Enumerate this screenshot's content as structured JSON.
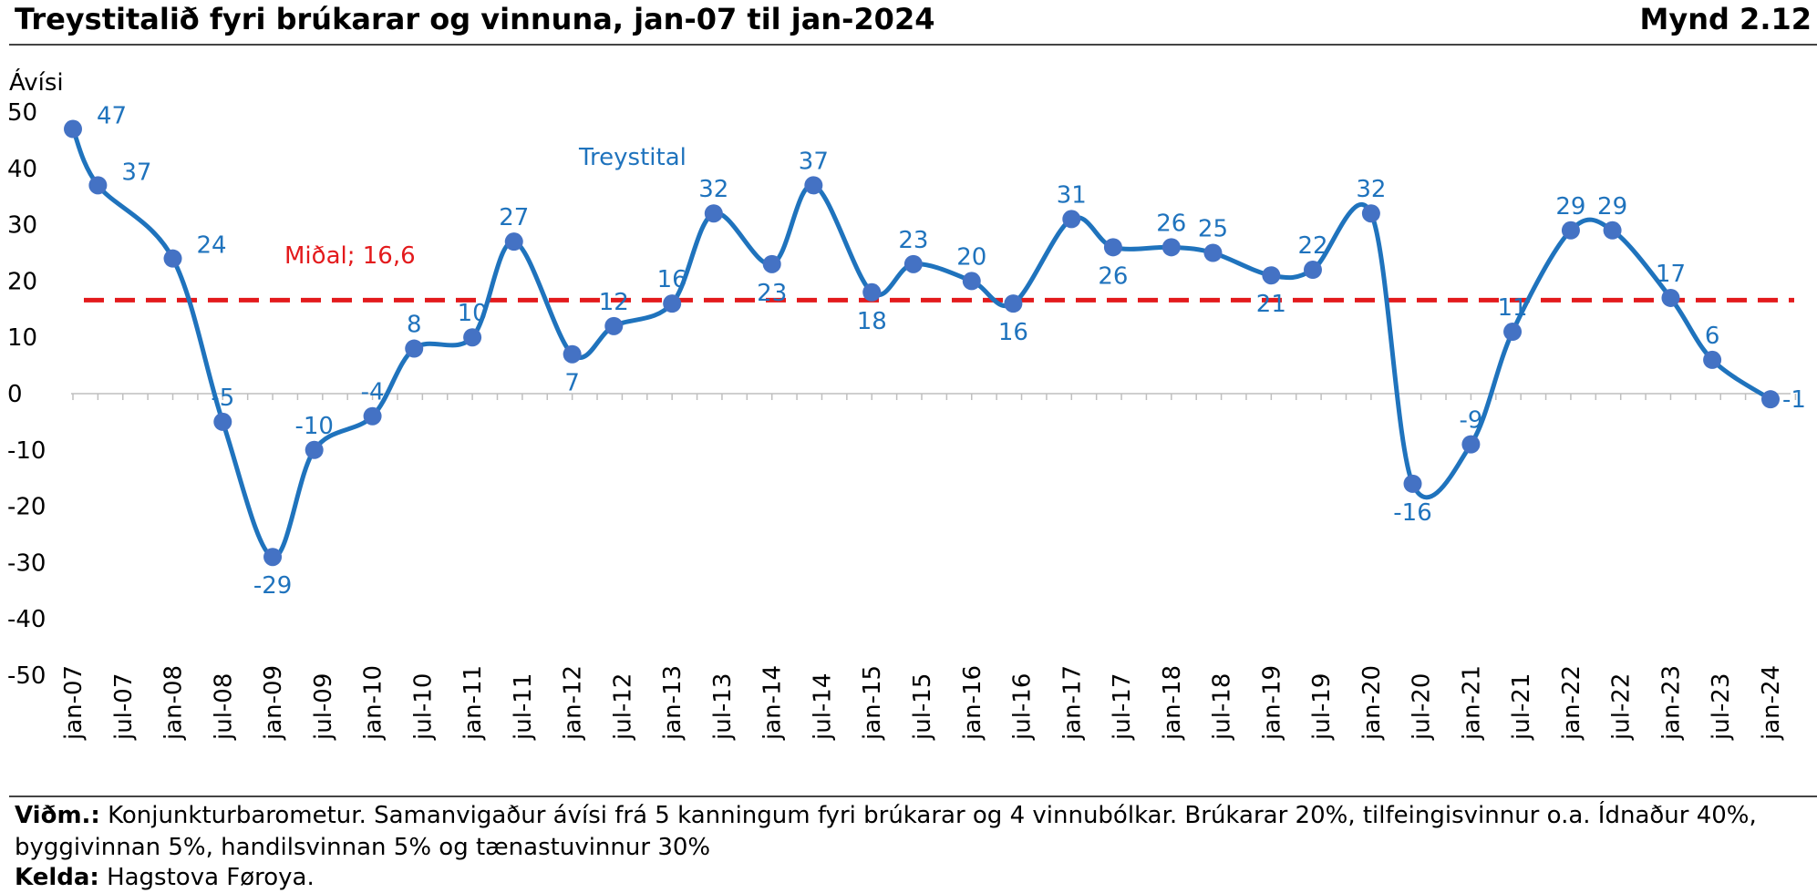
{
  "header": {
    "title": "Treystitalið fyri brúkarar og vinnuna, jan-07 til jan-2024",
    "figure_number": "Mynd 2.12"
  },
  "colors": {
    "series": "#1f73bd",
    "marker": "#4472c4",
    "label": "#1f73bd",
    "mean_line": "#e31a1c",
    "axis": "#bfbfbf"
  },
  "chart_data": {
    "type": "line",
    "ylabel": "Ávísi",
    "ylim": [
      -50,
      50
    ],
    "yticks": [
      50,
      40,
      30,
      20,
      10,
      0,
      -10,
      -20,
      -30,
      -40,
      -50
    ],
    "x_tick_labels": [
      "jan-07",
      "jul-07",
      "jan-08",
      "jul-08",
      "jan-09",
      "jul-09",
      "jan-10",
      "jul-10",
      "jan-11",
      "jul-11",
      "jan-12",
      "jul-12",
      "jan-13",
      "jul-13",
      "jan-14",
      "jul-14",
      "jan-15",
      "jul-15",
      "jan-16",
      "jul-16",
      "jan-17",
      "jul-17",
      "jan-18",
      "jul-18",
      "jan-19",
      "jul-19",
      "jan-20",
      "jul-20",
      "jan-21",
      "jul-21",
      "jan-22",
      "jul-22",
      "jan-23",
      "jul-23",
      "jan-24"
    ],
    "series": [
      {
        "name": "Treystital",
        "points": [
          {
            "x": "jan-07",
            "y": 47
          },
          {
            "x": "apr-07",
            "y": 37
          },
          {
            "x": "jan-08",
            "y": 24
          },
          {
            "x": "jul-08",
            "y": -5
          },
          {
            "x": "jan-09",
            "y": -29
          },
          {
            "x": "jun-09",
            "y": -10
          },
          {
            "x": "jan-10",
            "y": -4
          },
          {
            "x": "jun-10",
            "y": 8
          },
          {
            "x": "jan-11",
            "y": 10
          },
          {
            "x": "jun-11",
            "y": 27
          },
          {
            "x": "jan-12",
            "y": 7
          },
          {
            "x": "jun-12",
            "y": 12
          },
          {
            "x": "jan-13",
            "y": 16
          },
          {
            "x": "jun-13",
            "y": 32
          },
          {
            "x": "jan-14",
            "y": 23
          },
          {
            "x": "jun-14",
            "y": 37
          },
          {
            "x": "jan-15",
            "y": 18
          },
          {
            "x": "jun-15",
            "y": 23
          },
          {
            "x": "jan-16",
            "y": 20
          },
          {
            "x": "jun-16",
            "y": 16
          },
          {
            "x": "jan-17",
            "y": 31
          },
          {
            "x": "jun-17",
            "y": 26
          },
          {
            "x": "jan-18",
            "y": 26
          },
          {
            "x": "jun-18",
            "y": 25
          },
          {
            "x": "jan-19",
            "y": 21
          },
          {
            "x": "jun-19",
            "y": 22
          },
          {
            "x": "jan-20",
            "y": 32
          },
          {
            "x": "jun-20",
            "y": -16
          },
          {
            "x": "jan-21",
            "y": -9
          },
          {
            "x": "jun-21",
            "y": 11
          },
          {
            "x": "jan-22",
            "y": 29
          },
          {
            "x": "jun-22",
            "y": 29
          },
          {
            "x": "jan-23",
            "y": 17
          },
          {
            "x": "jun-23",
            "y": 6
          },
          {
            "x": "jan-24",
            "y": -1
          }
        ]
      }
    ],
    "series_label": "Treystital",
    "mean": {
      "label": "Miðal; 16,6",
      "value": 16.6
    },
    "legend": "none",
    "grid": false
  },
  "footer": {
    "note_label": "Viðm.:",
    "note_text": "Konjunkturbarometur. Samanvigaður ávísi frá 5 kanningum fyri brúkarar og 4 vinnubólkar. Brúkarar 20%, tilfeingisvinnur o.a. Ídnaður 40%, byggivinnan 5%, handilsvinnan 5% og tænastuvinnur 30%",
    "source_label": "Kelda:",
    "source_text": "Hagstova Føroya."
  }
}
